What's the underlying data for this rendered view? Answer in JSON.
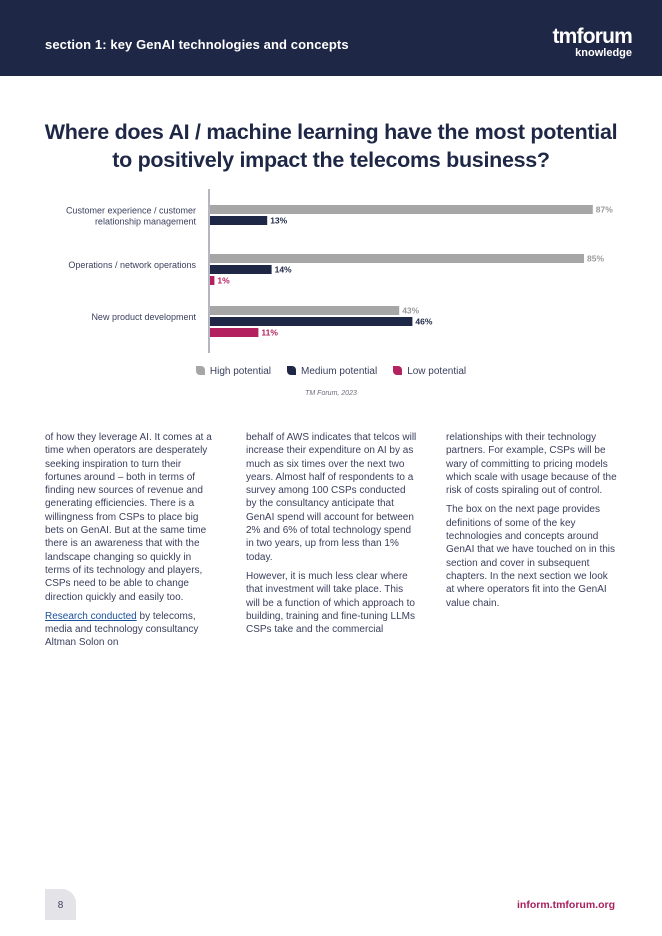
{
  "header": {
    "section_title": "section 1: key GenAI technologies and concepts",
    "logo_main": "tmforum",
    "logo_sub": "knowledge"
  },
  "chart_title": "Where does AI / machine learning have the most potential to positively impact the telecoms business?",
  "chart_data": {
    "type": "bar",
    "orientation": "horizontal",
    "title": "Where does AI / machine learning have the most potential to positively impact the telecoms business?",
    "categories": [
      [
        "Customer experience / customer",
        "relationship management"
      ],
      [
        "Operations / network operations"
      ],
      [
        "New product development"
      ]
    ],
    "series": [
      {
        "name": "High potential",
        "color": "#a6a6a6",
        "values": [
          87,
          85,
          43
        ]
      },
      {
        "name": "Medium potential",
        "color": "#1f2746",
        "values": [
          13,
          14,
          46
        ]
      },
      {
        "name": "Low potential",
        "color": "#b3215f",
        "values": [
          null,
          1,
          11
        ]
      }
    ],
    "unit": "%",
    "xlim": [
      0,
      100
    ],
    "legend": "bottom",
    "grid": false
  },
  "source": "TM Forum, 2023",
  "columns": {
    "col1": {
      "p1": "of how they leverage AI. It comes at a time when operators are desperately seeking inspiration to turn their fortunes around – both in terms of finding new sources of revenue and generating efficiencies. There is a willingness from CSPs to place big bets on GenAI. But at the same time there is an awareness that with the landscape changing so quickly in terms of its technology and players, CSPs need to be able to change direction quickly and easily too.",
      "p2_link": "Research conducted",
      "p2_rest": " by telecoms, media and technology consultancy Altman Solon on"
    },
    "col2": {
      "p1": "behalf of AWS indicates that telcos will increase their expenditure on AI by as much as six times over the next two years. Almost half of respondents to a survey among 100 CSPs conducted by the consultancy anticipate that GenAI spend will account for between 2% and 6% of total technology spend in two years, up from less than 1% today.",
      "p2": "However, it is much less clear where that investment will take place. This will be a function of which approach to building, training and fine-tuning LLMs CSPs take and the commercial"
    },
    "col3": {
      "p1": "relationships with their technology partners. For example, CSPs will be wary of committing to pricing models which scale with usage because of the risk of costs spiraling out of control.",
      "p2": "The box on the next page provides definitions of some of the key technologies and concepts around GenAI that we have touched on in this section and cover in subsequent chapters. In the next section we look at where operators fit into the GenAI value chain."
    }
  },
  "footer": {
    "page_number": "8",
    "url": "inform.tmforum.org"
  }
}
